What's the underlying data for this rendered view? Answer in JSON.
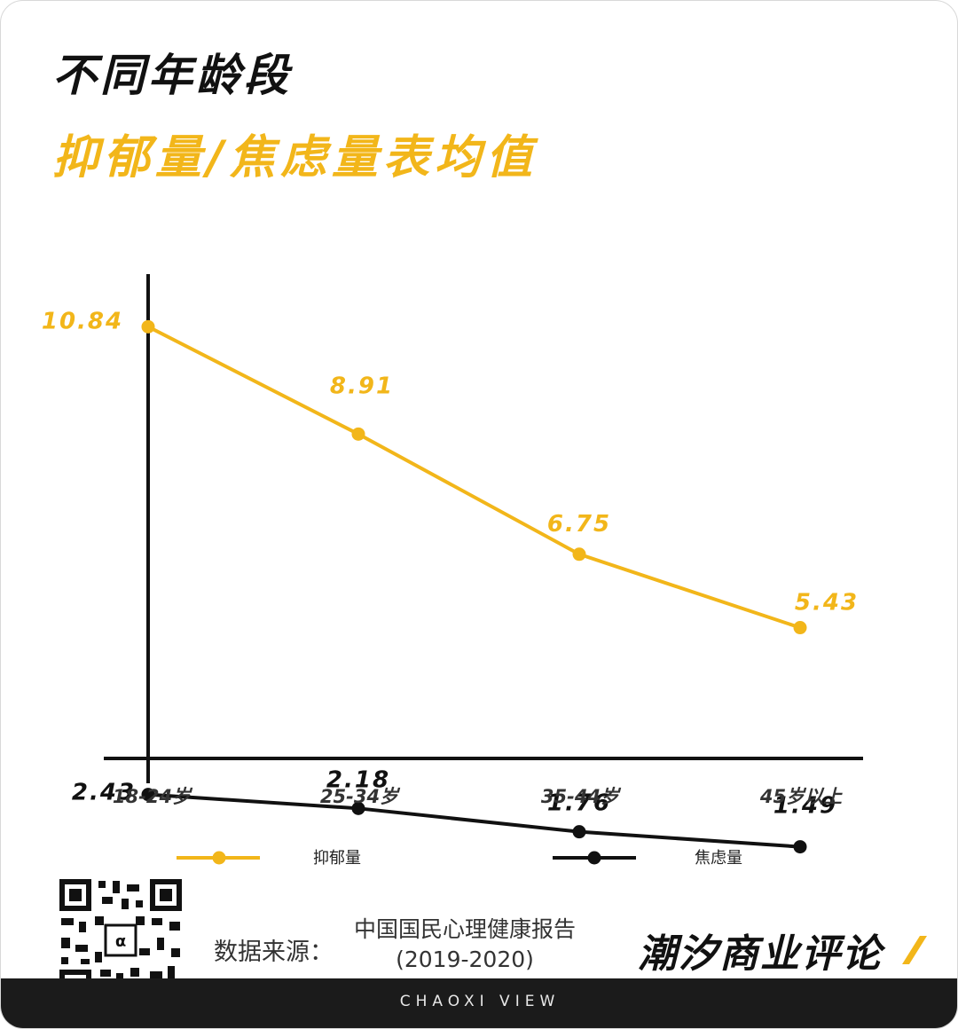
{
  "header": {
    "title_line1": "不同年龄段",
    "title_line2": "抑郁量/焦虑量表均值"
  },
  "chart_data": {
    "type": "line",
    "categories": [
      "18-24岁",
      "25-34岁",
      "35-44岁",
      "45岁以上"
    ],
    "series": [
      {
        "name": "抑郁量",
        "color": "#f2b61a",
        "values": [
          10.84,
          8.91,
          6.75,
          5.43
        ],
        "labels": [
          "10.84",
          "8.91",
          "6.75",
          "5.43"
        ]
      },
      {
        "name": "焦虑量",
        "color": "#111111",
        "values": [
          2.43,
          2.18,
          1.76,
          1.49
        ],
        "labels": [
          "2.43",
          "2.18",
          "1.76",
          "1.49"
        ]
      }
    ],
    "title": "",
    "xlabel": "",
    "ylabel": "",
    "grid": false,
    "legend_position": "bottom"
  },
  "footer": {
    "source_label": "数据来源：",
    "source_line1": "中国国民心理健康报告",
    "source_line2": "(2019-2020)",
    "brand": "潮汐商业评论",
    "tagline": "CHAOXI VIEW"
  }
}
